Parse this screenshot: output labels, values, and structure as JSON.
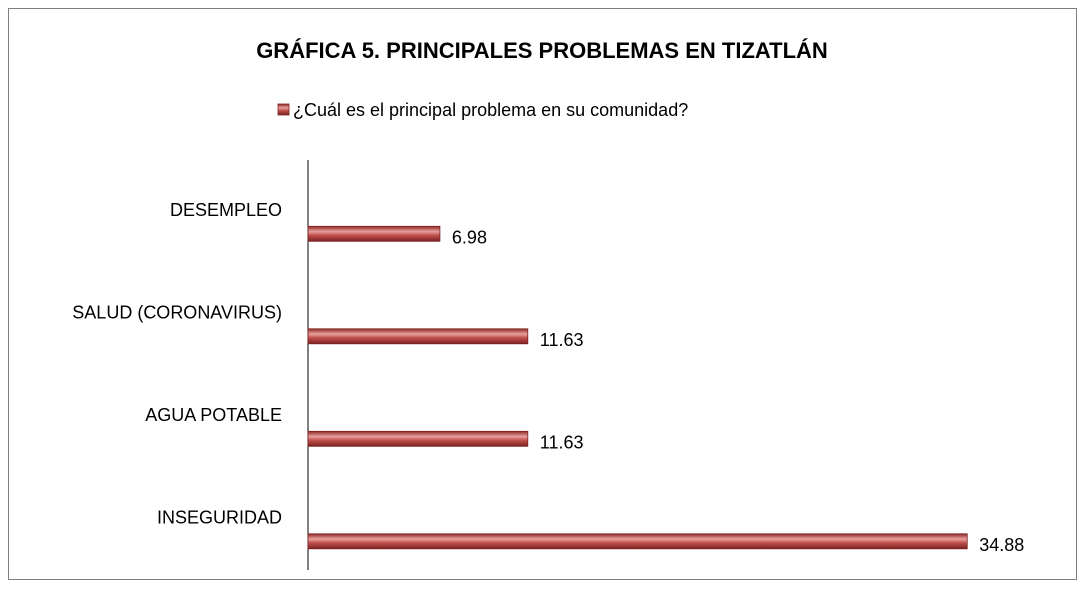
{
  "chart_data": {
    "type": "bar",
    "orientation": "horizontal",
    "title": "GRÁFICA 5. PRINCIPALES PROBLEMAS EN TIZATLÁN",
    "categories": [
      "DESEMPLEO",
      "SALUD (CORONAVIRUS)",
      "AGUA POTABLE",
      "INSEGURIDAD"
    ],
    "series": [
      {
        "name": "¿Cuál es el principal problema en su comunidad?",
        "color": "#c0504d",
        "values": [
          6.98,
          11.63,
          11.63,
          34.88
        ]
      }
    ],
    "xlim": [
      0,
      40
    ],
    "legend": "top"
  }
}
